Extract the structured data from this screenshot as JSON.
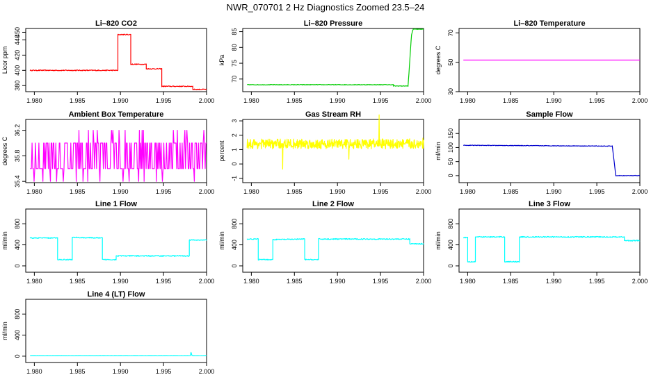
{
  "title": "NWR_070701  2 Hz Diagnostics Zoomed 23.5–24",
  "chart_data": [
    {
      "type": "line",
      "title": "Li–820 CO2",
      "ylabel": "Licor ppm",
      "color": "#ff0000",
      "xlim": [
        1.979,
        2.0
      ],
      "ylim": [
        372,
        455
      ],
      "xticks": [
        1.98,
        1.985,
        1.99,
        1.995,
        2.0
      ],
      "xtick_labels": [
        "1.980",
        "1.985",
        "1.990",
        "1.995",
        "2.000"
      ],
      "yticks": [
        380,
        400,
        420,
        440,
        450
      ],
      "ytick_labels": [
        "380",
        "400",
        "420",
        "440",
        "450"
      ],
      "noise": 0.6,
      "x": [
        1.9795,
        1.9897,
        1.9897,
        1.9912,
        1.9912,
        1.993,
        1.993,
        1.9948,
        1.9948,
        1.9984,
        1.9984,
        2.0
      ],
      "y": [
        400,
        400,
        447,
        447,
        408,
        408,
        402,
        402,
        379,
        379,
        375,
        375
      ]
    },
    {
      "type": "line",
      "title": "Li–820 Pressure",
      "ylabel": "kPa",
      "color": "#00cc00",
      "xlim": [
        1.979,
        2.0
      ],
      "ylim": [
        66,
        86
      ],
      "xticks": [
        1.98,
        1.985,
        1.99,
        1.995,
        2.0
      ],
      "xtick_labels": [
        "1.980",
        "1.985",
        "1.990",
        "1.995",
        "2.000"
      ],
      "yticks": [
        70,
        75,
        80,
        85
      ],
      "ytick_labels": [
        "70",
        "75",
        "80",
        "85"
      ],
      "noise": 0.1,
      "x": [
        1.9795,
        1.9965,
        1.9965,
        1.9982,
        1.9986,
        1.9988,
        2.0
      ],
      "y": [
        68.2,
        68.2,
        67.8,
        67.8,
        84.0,
        85.8,
        85.8
      ]
    },
    {
      "type": "line",
      "title": "Li–820 Temperature",
      "ylabel": "degrees C",
      "color": "#ff00ff",
      "xlim": [
        1.979,
        2.0
      ],
      "ylim": [
        30,
        73
      ],
      "xticks": [
        1.98,
        1.985,
        1.99,
        1.995,
        2.0
      ],
      "xtick_labels": [
        "1.980",
        "1.985",
        "1.990",
        "1.995",
        "2.000"
      ],
      "yticks": [
        30,
        50,
        70
      ],
      "ytick_labels": [
        "30",
        "50",
        "70"
      ],
      "noise": 0,
      "x": [
        1.9795,
        2.0
      ],
      "y": [
        51.5,
        51.5
      ]
    },
    {
      "type": "line",
      "title": "Ambient Box Temperature",
      "ylabel": "degrees C",
      "color": "#ff00ff",
      "xlim": [
        1.979,
        2.0
      ],
      "ylim": [
        35.38,
        36.37
      ],
      "xticks": [
        1.98,
        1.985,
        1.99,
        1.995,
        2.0
      ],
      "xtick_labels": [
        "1.980",
        "1.985",
        "1.990",
        "1.995",
        "2.000"
      ],
      "yticks": [
        35.4,
        35.8,
        36.2
      ],
      "ytick_labels": [
        "35.4",
        "35.8",
        "36.2"
      ],
      "signal": "binary",
      "levels": [
        35.6,
        36.0
      ],
      "x": [
        1.9795,
        2.0
      ],
      "y": [
        35.8,
        35.8
      ]
    },
    {
      "type": "line",
      "title": "Gas Stream RH",
      "ylabel": "percent",
      "color": "#ffff00",
      "xlim": [
        1.979,
        2.0
      ],
      "ylim": [
        -1.3,
        3.1
      ],
      "xticks": [
        1.98,
        1.985,
        1.99,
        1.995,
        2.0
      ],
      "xtick_labels": [
        "1.980",
        "1.985",
        "1.990",
        "1.995",
        "2.000"
      ],
      "yticks": [
        -1,
        0,
        1,
        2,
        3
      ],
      "ytick_labels": [
        "-1",
        "0",
        "1",
        "2",
        "3"
      ],
      "signal": "noisy",
      "noise": 0.35,
      "x": [
        1.9795,
        2.0
      ],
      "y": [
        1.4,
        1.4
      ]
    },
    {
      "type": "line",
      "title": "Sample Flow",
      "ylabel": "ml/min",
      "color": "#0000cc",
      "xlim": [
        1.979,
        2.0
      ],
      "ylim": [
        -25,
        200
      ],
      "xticks": [
        1.98,
        1.985,
        1.99,
        1.995,
        2.0
      ],
      "xtick_labels": [
        "1.980",
        "1.985",
        "1.990",
        "1.995",
        "2.000"
      ],
      "yticks": [
        0,
        50,
        100,
        150
      ],
      "ytick_labels": [
        "0",
        "50",
        "100",
        "150"
      ],
      "noise": 1.0,
      "x": [
        1.9795,
        1.9968,
        1.9968,
        1.9972,
        2.0
      ],
      "y": [
        108,
        105,
        105,
        0,
        0
      ]
    },
    {
      "type": "line",
      "title": "Line 1 Flow",
      "ylabel": "ml/min",
      "color": "#00ffff",
      "xlim": [
        1.979,
        2.0
      ],
      "ylim": [
        -120,
        1080
      ],
      "xticks": [
        1.98,
        1.985,
        1.99,
        1.995,
        2.0
      ],
      "xtick_labels": [
        "1.980",
        "1.985",
        "1.990",
        "1.995",
        "2.000"
      ],
      "yticks": [
        0,
        400,
        800
      ],
      "ytick_labels": [
        "0",
        "400",
        "800"
      ],
      "noise": 10,
      "x": [
        1.9795,
        1.9827,
        1.9827,
        1.9844,
        1.9844,
        1.9879,
        1.9879,
        1.9895,
        1.9895,
        1.998,
        1.998,
        2.0
      ],
      "y": [
        530,
        530,
        120,
        120,
        540,
        530,
        120,
        120,
        190,
        190,
        490,
        490
      ]
    },
    {
      "type": "line",
      "title": "Line 2 Flow",
      "ylabel": "ml/min",
      "color": "#00ffff",
      "xlim": [
        1.979,
        2.0
      ],
      "ylim": [
        -120,
        1080
      ],
      "xticks": [
        1.98,
        1.985,
        1.99,
        1.995,
        2.0
      ],
      "xtick_labels": [
        "1.980",
        "1.985",
        "1.990",
        "1.995",
        "2.000"
      ],
      "yticks": [
        0,
        400,
        800
      ],
      "ytick_labels": [
        "0",
        "400",
        "800"
      ],
      "noise": 10,
      "x": [
        1.9795,
        1.9808,
        1.9808,
        1.9825,
        1.9825,
        1.9862,
        1.9862,
        1.9878,
        1.9878,
        1.9984,
        1.9984,
        2.0
      ],
      "y": [
        510,
        510,
        120,
        120,
        500,
        510,
        120,
        120,
        510,
        510,
        420,
        420
      ]
    },
    {
      "type": "line",
      "title": "Line 3 Flow",
      "ylabel": "ml/min",
      "color": "#00ffff",
      "xlim": [
        1.979,
        2.0
      ],
      "ylim": [
        -120,
        1080
      ],
      "xticks": [
        1.98,
        1.985,
        1.99,
        1.995,
        2.0
      ],
      "xtick_labels": [
        "1.980",
        "1.985",
        "1.990",
        "1.995",
        "2.000"
      ],
      "yticks": [
        0,
        400,
        800
      ],
      "ytick_labels": [
        "0",
        "400",
        "800"
      ],
      "noise": 10,
      "x": [
        1.9795,
        1.98,
        1.98,
        1.9809,
        1.9809,
        1.9843,
        1.9843,
        1.986,
        1.986,
        1.9982,
        1.9982,
        2.0
      ],
      "y": [
        540,
        540,
        80,
        80,
        550,
        550,
        80,
        80,
        550,
        550,
        480,
        480
      ]
    },
    {
      "type": "line",
      "title": "Line 4 (LT) Flow",
      "ylabel": "ml/min",
      "color": "#00ffff",
      "xlim": [
        1.979,
        2.0
      ],
      "ylim": [
        -120,
        1080
      ],
      "xticks": [
        1.98,
        1.985,
        1.99,
        1.995,
        2.0
      ],
      "xtick_labels": [
        "1.980",
        "1.985",
        "1.990",
        "1.995",
        "2.000"
      ],
      "yticks": [
        0,
        400,
        800
      ],
      "ytick_labels": [
        "0",
        "400",
        "800"
      ],
      "noise": 2,
      "x": [
        1.9795,
        1.9981,
        1.9982,
        1.9983,
        1.9984,
        2.0
      ],
      "y": [
        10,
        10,
        70,
        15,
        10,
        10
      ]
    }
  ]
}
